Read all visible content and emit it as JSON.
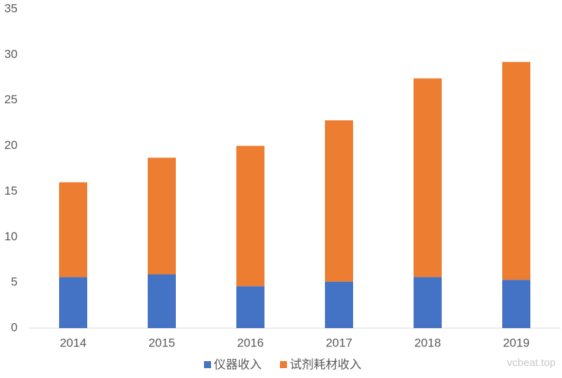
{
  "chart_data": {
    "type": "bar",
    "stacked": true,
    "categories": [
      "2014",
      "2015",
      "2016",
      "2017",
      "2018",
      "2019"
    ],
    "series": [
      {
        "name": "仪器收入",
        "color": "#4472c4",
        "values": [
          5.6,
          5.9,
          4.6,
          5.1,
          5.6,
          5.3
        ]
      },
      {
        "name": "试剂耗材收入",
        "color": "#ed7d31",
        "values": [
          10.4,
          12.8,
          15.4,
          17.7,
          21.8,
          23.9
        ]
      }
    ],
    "ylim": [
      0,
      35
    ],
    "yticks": [
      0,
      5,
      10,
      15,
      20,
      25,
      30,
      35
    ],
    "grid": false,
    "legend": "bottom",
    "watermark": "vcbeat.top"
  }
}
